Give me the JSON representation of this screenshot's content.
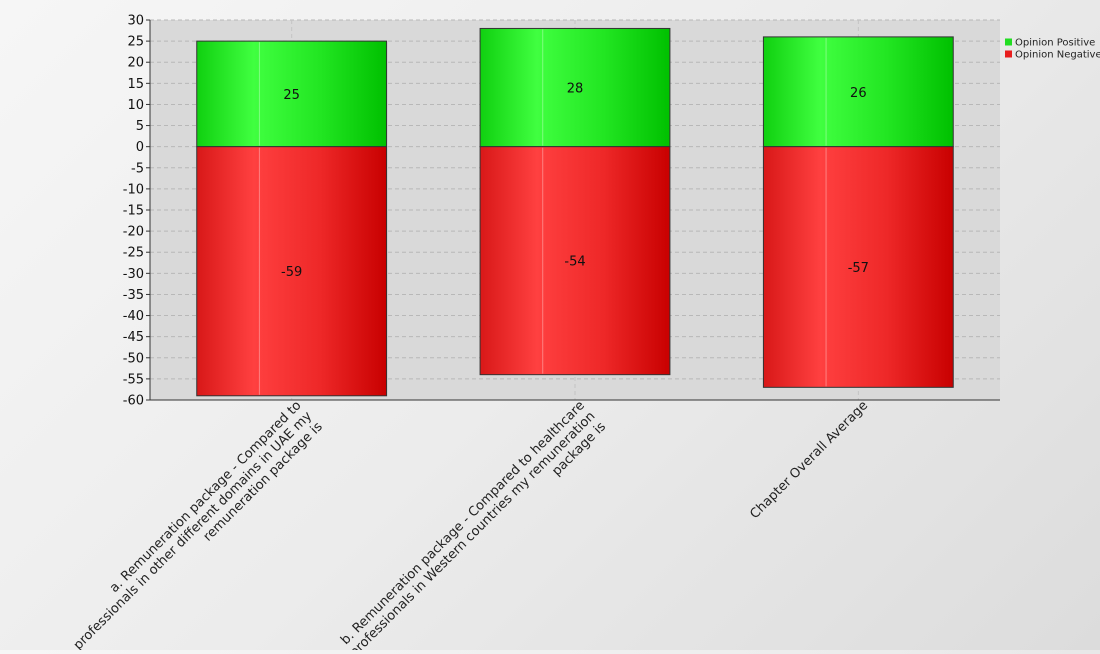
{
  "chart_data": {
    "type": "bar",
    "stacked": true,
    "categories": [
      [
        "a. Remuneration package - Compared to",
        "professionals in other different domains in UAE my",
        "remuneration package is"
      ],
      [
        "b. Remuneration package - Compared to healthcare",
        "professionals in Western countries my remuneration",
        "package is"
      ],
      [
        "Chapter Overall Average"
      ]
    ],
    "series": [
      {
        "name": "Opinion Positive",
        "values": [
          25,
          28,
          26
        ],
        "color": "#22dd22"
      },
      {
        "name": "Opinion Negative",
        "values": [
          -59,
          -54,
          -57
        ],
        "color": "#e81e1e"
      }
    ],
    "title": "",
    "xlabel": "",
    "ylabel": "",
    "ylim": [
      -60,
      30
    ],
    "ytick_step": 5,
    "grid": true,
    "legend_position": "top-right"
  }
}
